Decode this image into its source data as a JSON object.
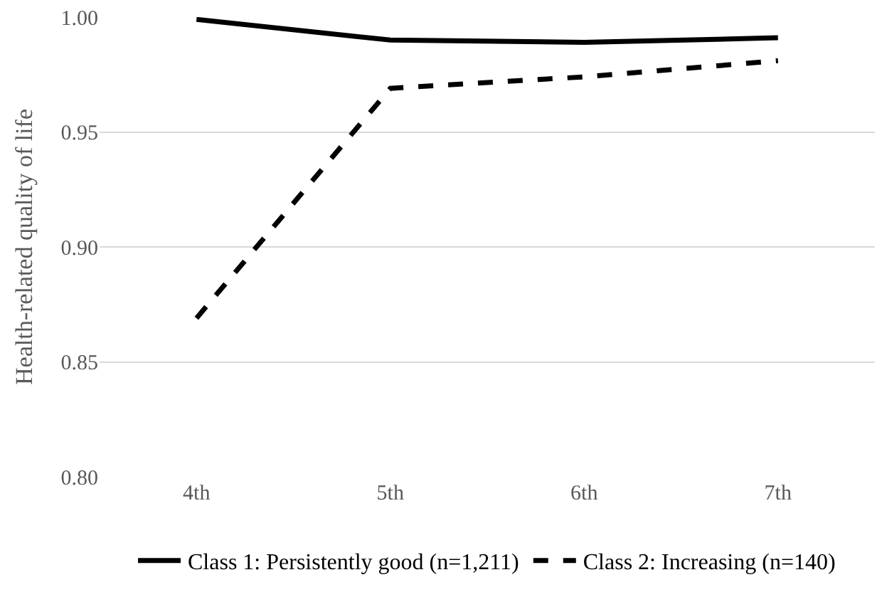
{
  "chart_data": {
    "type": "line",
    "ylabel": "Health-related quality of life",
    "categories": [
      "4th",
      "5th",
      "6th",
      "7th"
    ],
    "series": [
      {
        "name": "Class 1: Persistently good (n=1,211)",
        "color": "#000000",
        "values": [
          0.999,
          0.99,
          0.989,
          0.991
        ],
        "line_style": "solid"
      },
      {
        "name": "Class 2: Increasing (n=140)",
        "color": "#000000",
        "values": [
          0.869,
          0.969,
          0.974,
          0.981
        ],
        "line_style": "dashed"
      }
    ],
    "ylim": [
      0.8,
      1.0
    ],
    "yticks": [
      {
        "value": 0.8,
        "label": "0.80"
      },
      {
        "value": 0.85,
        "label": "0.85"
      },
      {
        "value": 0.9,
        "label": "0.90"
      },
      {
        "value": 0.95,
        "label": "0.95"
      },
      {
        "value": 1.0,
        "label": "1.00"
      }
    ],
    "grid": "y",
    "legend": "bottom",
    "marker": "none"
  }
}
